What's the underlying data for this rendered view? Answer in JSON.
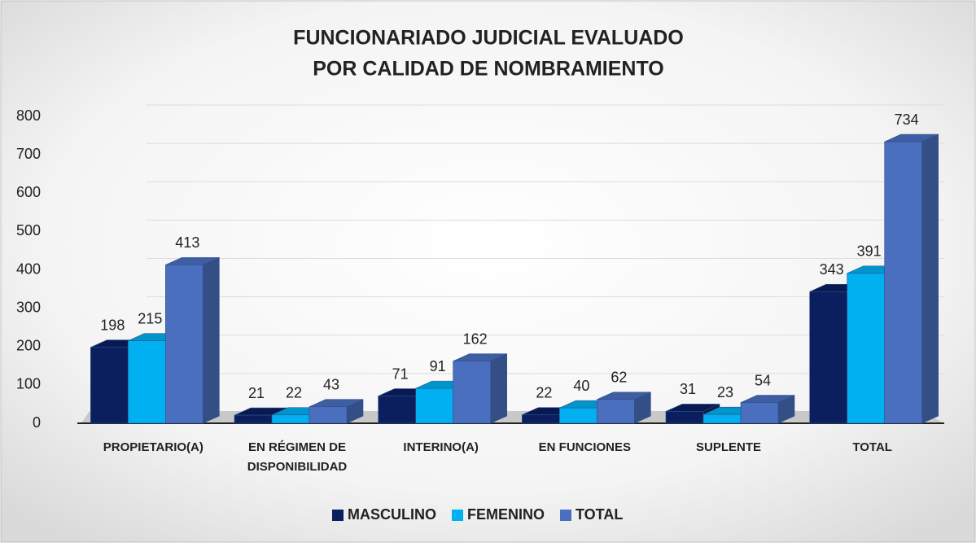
{
  "chart_data": {
    "type": "bar3d",
    "title": [
      "FUNCIONARIADO JUDICIAL EVALUADO",
      "POR CALIDAD DE NOMBRAMIENTO"
    ],
    "categories": [
      "PROPIETARIO(A)",
      "EN RÉGIMEN DE DISPONIBILIDAD",
      "INTERINO(A)",
      "EN FUNCIONES",
      "SUPLENTE",
      "TOTAL"
    ],
    "series": [
      {
        "name": "MASCULINO",
        "color": "#0b1f5e",
        "values": [
          198,
          21,
          71,
          22,
          31,
          343
        ]
      },
      {
        "name": "FEMENINO",
        "color": "#00b0f0",
        "values": [
          215,
          22,
          91,
          40,
          23,
          391
        ]
      },
      {
        "name": "TOTAL",
        "color": "#4a6fbf",
        "values": [
          413,
          43,
          162,
          62,
          54,
          734
        ]
      }
    ],
    "ylim": [
      0,
      800
    ],
    "yticks": [
      0,
      100,
      200,
      300,
      400,
      500,
      600,
      700,
      800
    ],
    "grid": true,
    "legend": "bottom"
  }
}
